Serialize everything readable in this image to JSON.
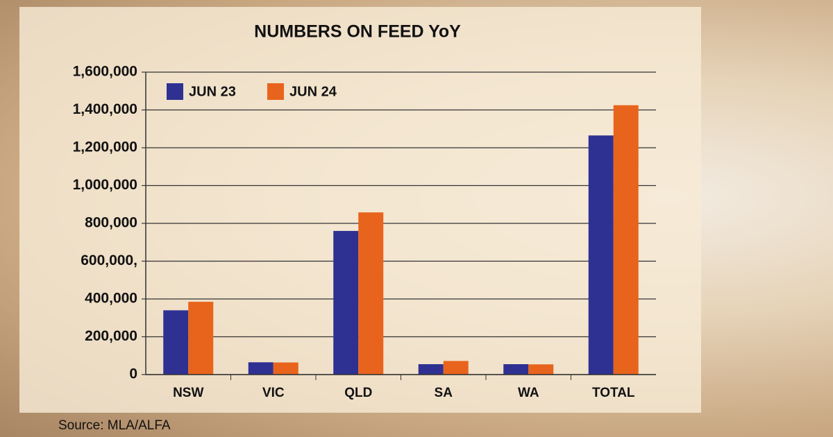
{
  "chart_data": {
    "type": "bar",
    "title": "NUMBERS ON FEED YoY",
    "categories": [
      "NSW",
      "VIC",
      "QLD",
      "SA",
      "WA",
      "TOTAL"
    ],
    "series": [
      {
        "name": "JUN 23",
        "color": "#2e3192",
        "values": [
          340000,
          65000,
          760000,
          55000,
          55000,
          1265000
        ]
      },
      {
        "name": "JUN 24",
        "color": "#e8641c",
        "values": [
          385000,
          64000,
          858000,
          72000,
          54000,
          1425000
        ]
      }
    ],
    "ylim": [
      0,
      1600000
    ],
    "yticks": [
      0,
      {
        "value": 200000,
        "label": "200,000"
      },
      {
        "value": 400000,
        "label": "400,000"
      },
      {
        "value": 600000,
        "label": "600,000,"
      },
      {
        "value": 800000,
        "label": "800,000"
      },
      {
        "value": 1000000,
        "label": "1,000,000"
      },
      {
        "value": 1200000,
        "label": "1,200,000"
      },
      {
        "value": 1400000,
        "label": "1,400,000"
      },
      {
        "value": 1600000,
        "label": "1,600,000"
      }
    ],
    "grid": true,
    "legend_position": "upper left",
    "source": "Source: MLA/ALFA"
  }
}
